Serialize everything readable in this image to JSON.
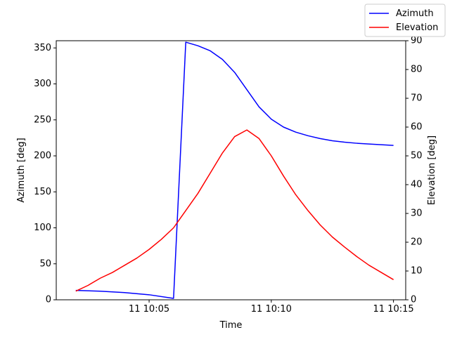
{
  "chart_data": {
    "type": "line",
    "xlabel": "Time",
    "ylabel_left": "Azimuth [deg]",
    "ylabel_right": "Elevation [deg]",
    "legend_position": "top-right",
    "x_range_minutes": [
      10.0,
      15.4
    ],
    "ylim_left": [
      0,
      360
    ],
    "ylim_right": [
      0,
      90
    ],
    "x_ticks": [
      {
        "minute": 10.0833,
        "label": "11 10:05"
      },
      {
        "minute": 10.1667,
        "label": "11 10:10"
      },
      {
        "minute": 10.25,
        "label": "11 10:15"
      }
    ],
    "y_ticks_left": [
      0,
      50,
      100,
      150,
      200,
      250,
      300,
      350
    ],
    "y_ticks_right": [
      0,
      10,
      20,
      30,
      40,
      50,
      60,
      70,
      80,
      90
    ],
    "series": [
      {
        "name": "Azimuth",
        "axis": "left",
        "color": "#0000ff",
        "x": [
          "10:02",
          "10:03",
          "10:04",
          "10:05",
          "10:06",
          "10:06:30",
          "10:07",
          "10:07:30",
          "10:08",
          "10:08:30",
          "10:09",
          "10:09:30",
          "10:10",
          "10:10:30",
          "10:11",
          "10:11:30",
          "10:12",
          "10:12:30",
          "10:13",
          "10:13:30",
          "10:14",
          "10:14:30",
          "10:15"
        ],
        "values": [
          13,
          12,
          10,
          7,
          2,
          358,
          353,
          346,
          334,
          316,
          292,
          268,
          251,
          240,
          233,
          228,
          224,
          221,
          219,
          217.5,
          216.5,
          215.5,
          214.5
        ]
      },
      {
        "name": "Elevation",
        "axis": "right",
        "color": "#ff0000",
        "x": [
          "10:02",
          "10:02:30",
          "10:03",
          "10:03:30",
          "10:04",
          "10:04:30",
          "10:05",
          "10:05:30",
          "10:06",
          "10:06:30",
          "10:07",
          "10:07:30",
          "10:08",
          "10:08:30",
          "10:09",
          "10:09:30",
          "10:10",
          "10:10:30",
          "10:11",
          "10:11:30",
          "10:12",
          "10:12:30",
          "10:13",
          "10:13:30",
          "10:14",
          "10:14:30",
          "10:15"
        ],
        "values": [
          3,
          5,
          7.5,
          9.5,
          12,
          14.5,
          17.5,
          21,
          25,
          31,
          37,
          44,
          51,
          56.7,
          59,
          56,
          50,
          43,
          36.5,
          31,
          26,
          21.8,
          18.3,
          15,
          12,
          9.5,
          7
        ]
      }
    ]
  }
}
